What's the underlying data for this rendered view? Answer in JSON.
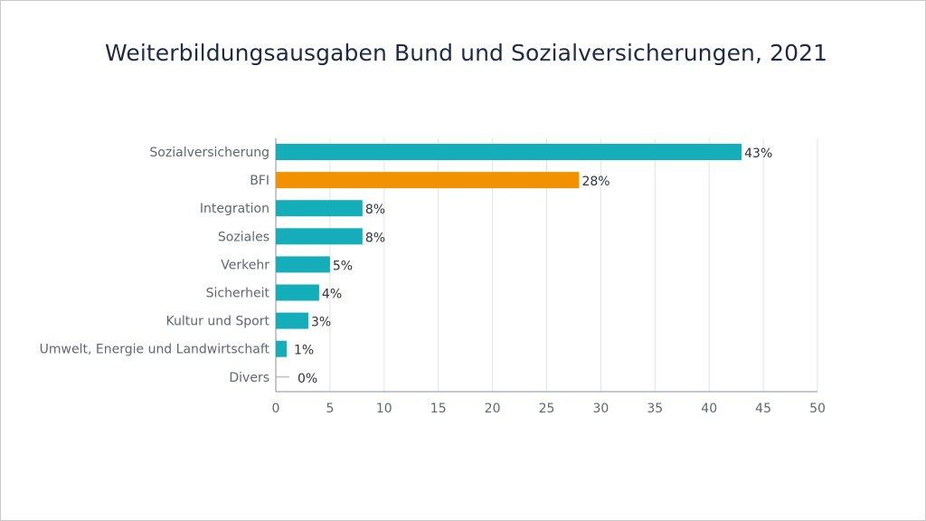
{
  "chart_data": {
    "type": "bar",
    "orientation": "horizontal",
    "title": "Weiterbildungsausgaben Bund und Sozialversicherungen, 2021",
    "categories": [
      "Sozialversicherung",
      "BFI",
      "Integration",
      "Soziales",
      "Verkehr",
      "Sicherheit",
      "Kultur und Sport",
      "Umwelt, Energie und Landwirtschaft",
      "Divers"
    ],
    "values": [
      43,
      28,
      8,
      8,
      5,
      4,
      3,
      1,
      0
    ],
    "data_labels": [
      "43%",
      "28%",
      "8%",
      "8%",
      "5%",
      "4%",
      "3%",
      "1%",
      "0%"
    ],
    "highlight_category": "BFI",
    "xlim": [
      0,
      50
    ],
    "xticks": [
      0,
      5,
      10,
      15,
      20,
      25,
      30,
      35,
      40,
      45,
      50
    ],
    "grid": true,
    "colors": {
      "default": "#14aebb",
      "highlight": "#f39200",
      "grid": "#e3e3e3",
      "axis": "#8a8f99",
      "label": "#5f6675",
      "value": "#2d3340"
    }
  }
}
